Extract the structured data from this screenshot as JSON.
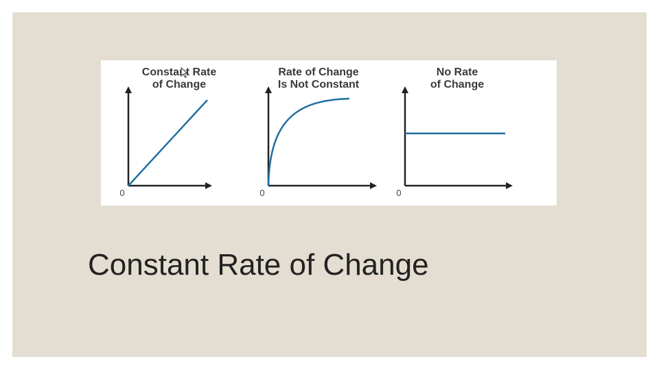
{
  "slide": {
    "title": "Constant Rate of Change",
    "background_color": "#e4ded2"
  },
  "chart_data": [
    {
      "type": "line",
      "title_lines": [
        "Constant Rate",
        "of Change"
      ],
      "origin_label": "0",
      "shape": "linear",
      "x": [
        0,
        1
      ],
      "y": [
        0,
        1
      ],
      "line_color": "#1f6f9f",
      "grid": false
    },
    {
      "type": "line",
      "title_lines": [
        "Rate of Change",
        "Is Not Constant"
      ],
      "origin_label": "0",
      "shape": "concave-increasing",
      "x": [
        0,
        0.1,
        0.2,
        0.35,
        0.5,
        0.65,
        0.8,
        1
      ],
      "y": [
        0,
        0.42,
        0.62,
        0.78,
        0.88,
        0.94,
        0.98,
        1
      ],
      "line_color": "#1f6f9f",
      "grid": false
    },
    {
      "type": "line",
      "title_lines": [
        "No Rate",
        "of Change"
      ],
      "origin_label": "0",
      "shape": "horizontal",
      "x": [
        0,
        1
      ],
      "y": [
        0.6,
        0.6
      ],
      "line_color": "#1f6f9f",
      "grid": false
    }
  ],
  "icons": {
    "cursor": "mouse-pointer-icon"
  }
}
